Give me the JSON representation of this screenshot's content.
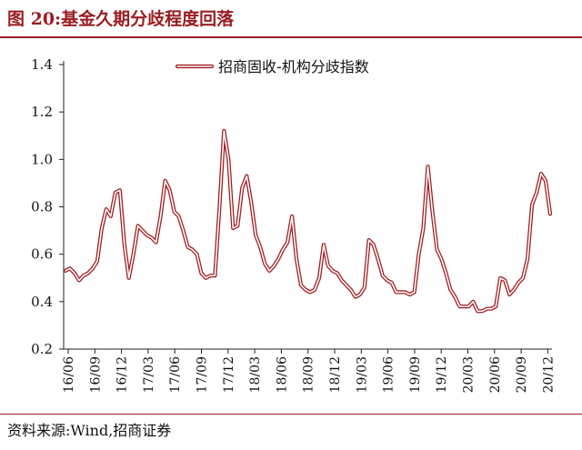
{
  "figure": {
    "title": "图 20:基金久期分歧程度回落",
    "source": "资料来源:Wind,招商证券",
    "accent_color": "#9b1d20"
  },
  "chart_data": {
    "type": "line",
    "title": "",
    "xlabel": "",
    "ylabel": "",
    "ylim": [
      0.2,
      1.4
    ],
    "yticks": [
      "0.2",
      "0.4",
      "0.6",
      "0.8",
      "1.0",
      "1.2",
      "1.4"
    ],
    "xticks": [
      "16/06",
      "16/09",
      "16/12",
      "17/03",
      "17/06",
      "17/09",
      "17/12",
      "18/03",
      "18/06",
      "18/09",
      "18/12",
      "19/03",
      "19/06",
      "19/09",
      "19/12",
      "20/03",
      "20/06",
      "20/09",
      "20/12"
    ],
    "legend": "top-center",
    "grid": false,
    "series": [
      {
        "name": "招商固收-机构分歧指数",
        "color": "#a31f22",
        "fill_color": "#ffffff",
        "values": [
          0.53,
          0.54,
          0.52,
          0.49,
          0.51,
          0.52,
          0.54,
          0.57,
          0.71,
          0.79,
          0.76,
          0.86,
          0.87,
          0.64,
          0.5,
          0.6,
          0.72,
          0.7,
          0.68,
          0.67,
          0.65,
          0.76,
          0.91,
          0.87,
          0.78,
          0.76,
          0.7,
          0.63,
          0.62,
          0.6,
          0.52,
          0.5,
          0.51,
          0.51,
          0.8,
          1.12,
          1.0,
          0.71,
          0.72,
          0.88,
          0.93,
          0.82,
          0.68,
          0.63,
          0.56,
          0.53,
          0.55,
          0.58,
          0.62,
          0.65,
          0.76,
          0.58,
          0.47,
          0.45,
          0.44,
          0.45,
          0.5,
          0.64,
          0.55,
          0.53,
          0.52,
          0.49,
          0.47,
          0.45,
          0.42,
          0.43,
          0.46,
          0.66,
          0.64,
          0.58,
          0.51,
          0.49,
          0.48,
          0.44,
          0.44,
          0.44,
          0.43,
          0.44,
          0.6,
          0.71,
          0.97,
          0.78,
          0.62,
          0.58,
          0.52,
          0.45,
          0.42,
          0.38,
          0.38,
          0.38,
          0.4,
          0.36,
          0.36,
          0.37,
          0.37,
          0.38,
          0.5,
          0.49,
          0.43,
          0.45,
          0.48,
          0.5,
          0.58,
          0.81,
          0.86,
          0.94,
          0.91,
          0.77
        ]
      }
    ]
  }
}
